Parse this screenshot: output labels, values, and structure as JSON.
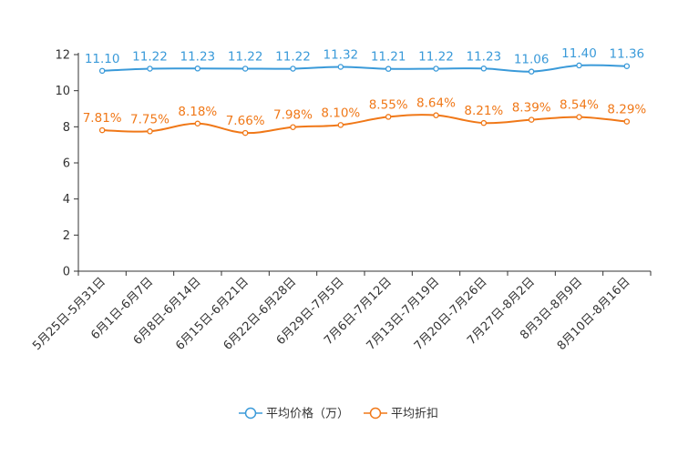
{
  "chart_data": {
    "type": "line",
    "title": "",
    "xlabel": "",
    "ylabel": "",
    "ylim": [
      0,
      12
    ],
    "yticks": [
      "0",
      "2",
      "4",
      "6",
      "8",
      "10",
      "12"
    ],
    "grid": false,
    "legend_position": "bottom-center",
    "categories": [
      "5月25日-5月31日",
      "6月1日-6月7日",
      "6月8日-6月14日",
      "6月15日-6月21日",
      "6月22日-6月28日",
      "6月29日-7月5日",
      "7月6日-7月12日",
      "7月13日-7月19日",
      "7月20日-7月26日",
      "7月27日-8月2日",
      "8月3日-8月9日",
      "8月10日-8月16日"
    ],
    "series": [
      {
        "name": "平均价格（万）",
        "color": "#3a9ad9",
        "values": [
          11.1,
          11.22,
          11.23,
          11.22,
          11.22,
          11.32,
          11.21,
          11.22,
          11.23,
          11.06,
          11.4,
          11.36
        ],
        "labels": [
          "11.10",
          "11.22",
          "11.23",
          "11.22",
          "11.22",
          "11.32",
          "11.21",
          "11.22",
          "11.23",
          "11.06",
          "11.40",
          "11.36"
        ]
      },
      {
        "name": "平均折扣",
        "color": "#f07818",
        "values": [
          7.81,
          7.75,
          8.18,
          7.66,
          7.98,
          8.1,
          8.55,
          8.64,
          8.21,
          8.39,
          8.54,
          8.29
        ],
        "labels": [
          "7.81%",
          "7.75%",
          "8.18%",
          "7.66%",
          "7.98%",
          "8.10%",
          "8.55%",
          "8.64%",
          "8.21%",
          "8.39%",
          "8.54%",
          "8.29%"
        ]
      }
    ]
  }
}
